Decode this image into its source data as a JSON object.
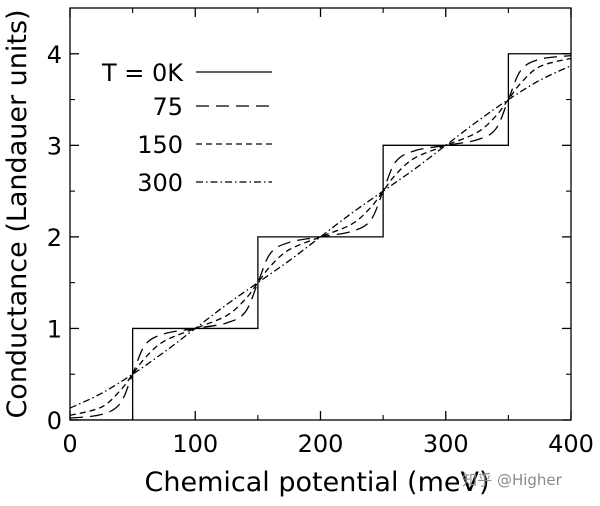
{
  "chart_data": {
    "type": "line",
    "title": "",
    "xlabel": "Chemical potential (meV)",
    "ylabel": "Conductance (Landauer units)",
    "xlim": [
      0,
      400
    ],
    "ylim": [
      0,
      4.5
    ],
    "xticks": [
      0,
      100,
      200,
      300,
      400
    ],
    "yticks": [
      0,
      1,
      2,
      3,
      4
    ],
    "grid": false,
    "legend_position": "top-left",
    "legend_title_prefix": "T = ",
    "step_energies_meV": [
      50,
      150,
      250,
      350
    ],
    "series": [
      {
        "name": "0K",
        "temperature_K": 0,
        "dash": "solid",
        "x": [
          0,
          50,
          50,
          150,
          150,
          250,
          250,
          350,
          350,
          400
        ],
        "y": [
          0,
          0,
          1,
          1,
          2,
          2,
          3,
          3,
          4,
          4
        ]
      },
      {
        "name": "75",
        "temperature_K": 75,
        "dash": "long-dash",
        "x": [
          0,
          25,
          40,
          50,
          60,
          75,
          100,
          125,
          140,
          150,
          160,
          175,
          200,
          225,
          240,
          250,
          260,
          275,
          300,
          325,
          340,
          350,
          360,
          375,
          400
        ],
        "y": [
          0.02,
          0.06,
          0.18,
          0.5,
          0.82,
          0.94,
          1.0,
          1.06,
          1.18,
          1.5,
          1.82,
          1.94,
          2.0,
          2.06,
          2.18,
          2.5,
          2.82,
          2.94,
          3.0,
          3.06,
          3.18,
          3.5,
          3.82,
          3.94,
          3.98
        ]
      },
      {
        "name": "150",
        "temperature_K": 150,
        "dash": "short-dash",
        "x": [
          0,
          25,
          40,
          50,
          60,
          75,
          100,
          125,
          140,
          150,
          160,
          175,
          200,
          225,
          240,
          250,
          260,
          275,
          300,
          325,
          340,
          350,
          360,
          375,
          400
        ],
        "y": [
          0.05,
          0.14,
          0.32,
          0.5,
          0.68,
          0.86,
          1.0,
          1.14,
          1.32,
          1.5,
          1.68,
          1.86,
          2.0,
          2.14,
          2.32,
          2.5,
          2.68,
          2.86,
          3.0,
          3.14,
          3.32,
          3.5,
          3.68,
          3.86,
          3.95
        ]
      },
      {
        "name": "300",
        "temperature_K": 300,
        "dash": "dash-dot",
        "x": [
          0,
          25,
          50,
          75,
          100,
          125,
          150,
          175,
          200,
          225,
          250,
          275,
          300,
          325,
          350,
          375,
          400
        ],
        "y": [
          0.13,
          0.29,
          0.5,
          0.74,
          1.0,
          1.26,
          1.5,
          1.74,
          2.0,
          2.26,
          2.5,
          2.74,
          3.0,
          3.26,
          3.5,
          3.71,
          3.87
        ]
      }
    ]
  },
  "watermark": {
    "text": "知乎 @Higher",
    "color": "#8a8a8a"
  },
  "colors": {
    "line": "#000000",
    "background": "#ffffff"
  }
}
